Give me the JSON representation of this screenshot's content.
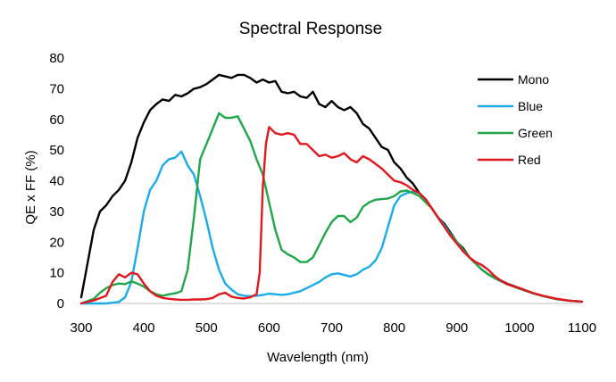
{
  "chart_data": {
    "type": "line",
    "title": "Spectral Response",
    "xlabel": "Wavelength (nm)",
    "ylabel": "QE x FF (%)",
    "xlim": [
      300,
      1100
    ],
    "ylim": [
      0,
      80
    ],
    "x_ticks": [
      "300",
      "400",
      "500",
      "600",
      "700",
      "800",
      "900",
      "1000",
      "1100"
    ],
    "y_ticks": [
      "0",
      "10",
      "20",
      "30",
      "40",
      "50",
      "60",
      "70",
      "80"
    ],
    "grid": false,
    "legend_position": "top-right",
    "series": [
      {
        "name": "Mono",
        "color": "#000000",
        "points": [
          [
            300,
            2
          ],
          [
            310,
            13
          ],
          [
            320,
            24
          ],
          [
            330,
            30
          ],
          [
            340,
            32
          ],
          [
            350,
            35
          ],
          [
            360,
            37
          ],
          [
            370,
            40
          ],
          [
            380,
            46
          ],
          [
            390,
            54
          ],
          [
            400,
            59
          ],
          [
            410,
            63
          ],
          [
            420,
            65
          ],
          [
            430,
            66.5
          ],
          [
            440,
            66
          ],
          [
            450,
            68
          ],
          [
            460,
            67.5
          ],
          [
            470,
            68.5
          ],
          [
            480,
            70
          ],
          [
            490,
            70.5
          ],
          [
            500,
            71.5
          ],
          [
            510,
            73
          ],
          [
            520,
            74.5
          ],
          [
            530,
            74
          ],
          [
            540,
            73.5
          ],
          [
            550,
            74.5
          ],
          [
            560,
            74.5
          ],
          [
            570,
            73.5
          ],
          [
            580,
            72
          ],
          [
            590,
            73
          ],
          [
            600,
            72
          ],
          [
            610,
            72.5
          ],
          [
            620,
            69
          ],
          [
            630,
            68.5
          ],
          [
            640,
            69
          ],
          [
            650,
            67.5
          ],
          [
            660,
            67
          ],
          [
            670,
            69
          ],
          [
            680,
            65
          ],
          [
            690,
            64
          ],
          [
            700,
            66
          ],
          [
            710,
            64
          ],
          [
            720,
            63
          ],
          [
            730,
            64
          ],
          [
            740,
            62
          ],
          [
            750,
            58.5
          ],
          [
            760,
            57
          ],
          [
            770,
            54
          ],
          [
            780,
            51
          ],
          [
            790,
            50
          ],
          [
            800,
            46
          ],
          [
            810,
            44
          ],
          [
            820,
            41
          ],
          [
            830,
            39
          ],
          [
            840,
            36
          ],
          [
            850,
            34
          ],
          [
            860,
            31
          ],
          [
            870,
            28
          ],
          [
            880,
            26
          ],
          [
            890,
            23
          ],
          [
            900,
            20
          ],
          [
            910,
            18
          ],
          [
            920,
            15
          ],
          [
            930,
            13
          ],
          [
            940,
            11
          ],
          [
            950,
            9.5
          ],
          [
            960,
            8.5
          ],
          [
            970,
            7.5
          ],
          [
            980,
            6.5
          ],
          [
            1000,
            5
          ],
          [
            1020,
            3.5
          ],
          [
            1040,
            2.3
          ],
          [
            1060,
            1.4
          ],
          [
            1080,
            0.9
          ],
          [
            1100,
            0.6
          ]
        ]
      },
      {
        "name": "Blue",
        "color": "#1aabe8",
        "points": [
          [
            300,
            0
          ],
          [
            320,
            0
          ],
          [
            340,
            0
          ],
          [
            360,
            0.5
          ],
          [
            370,
            2
          ],
          [
            380,
            7
          ],
          [
            390,
            18
          ],
          [
            400,
            30
          ],
          [
            410,
            37
          ],
          [
            420,
            40
          ],
          [
            430,
            45
          ],
          [
            440,
            47
          ],
          [
            450,
            47.5
          ],
          [
            460,
            49.5
          ],
          [
            470,
            45
          ],
          [
            480,
            42
          ],
          [
            490,
            35
          ],
          [
            500,
            27
          ],
          [
            510,
            18
          ],
          [
            520,
            11
          ],
          [
            530,
            6.5
          ],
          [
            540,
            4.5
          ],
          [
            550,
            3
          ],
          [
            560,
            2.5
          ],
          [
            570,
            2.4
          ],
          [
            580,
            2.5
          ],
          [
            590,
            2.8
          ],
          [
            600,
            3.2
          ],
          [
            610,
            3
          ],
          [
            620,
            2.8
          ],
          [
            630,
            3
          ],
          [
            640,
            3.5
          ],
          [
            650,
            4
          ],
          [
            660,
            5
          ],
          [
            670,
            6
          ],
          [
            680,
            7
          ],
          [
            690,
            8.5
          ],
          [
            700,
            9.5
          ],
          [
            710,
            9.8
          ],
          [
            720,
            9.3
          ],
          [
            730,
            8.8
          ],
          [
            740,
            9.5
          ],
          [
            750,
            11
          ],
          [
            760,
            12
          ],
          [
            770,
            14
          ],
          [
            780,
            18
          ],
          [
            790,
            25
          ],
          [
            800,
            32
          ],
          [
            810,
            35
          ],
          [
            820,
            36
          ],
          [
            830,
            36.5
          ],
          [
            840,
            36
          ],
          [
            850,
            34
          ],
          [
            860,
            31
          ],
          [
            870,
            28
          ],
          [
            880,
            25.5
          ],
          [
            890,
            22.5
          ],
          [
            900,
            20
          ],
          [
            910,
            17.5
          ],
          [
            920,
            15
          ],
          [
            930,
            13
          ],
          [
            940,
            11
          ],
          [
            950,
            9.5
          ],
          [
            960,
            8.3
          ],
          [
            970,
            7.3
          ],
          [
            980,
            6.3
          ],
          [
            1000,
            4.8
          ],
          [
            1020,
            3.4
          ],
          [
            1040,
            2.3
          ],
          [
            1060,
            1.4
          ],
          [
            1080,
            0.9
          ],
          [
            1100,
            0.6
          ]
        ]
      },
      {
        "name": "Green",
        "color": "#22a64a",
        "points": [
          [
            300,
            0
          ],
          [
            320,
            1.5
          ],
          [
            330,
            3.5
          ],
          [
            340,
            5
          ],
          [
            350,
            6
          ],
          [
            360,
            6.5
          ],
          [
            370,
            6.3
          ],
          [
            380,
            7.2
          ],
          [
            390,
            6.5
          ],
          [
            400,
            5.5
          ],
          [
            410,
            4
          ],
          [
            420,
            3
          ],
          [
            430,
            2.5
          ],
          [
            440,
            3
          ],
          [
            450,
            3.3
          ],
          [
            460,
            4
          ],
          [
            470,
            11
          ],
          [
            480,
            28
          ],
          [
            490,
            47
          ],
          [
            500,
            52
          ],
          [
            510,
            57
          ],
          [
            520,
            62
          ],
          [
            530,
            60.5
          ],
          [
            540,
            60.5
          ],
          [
            550,
            61
          ],
          [
            560,
            57
          ],
          [
            570,
            53
          ],
          [
            580,
            47
          ],
          [
            590,
            42
          ],
          [
            600,
            33
          ],
          [
            610,
            24
          ],
          [
            620,
            17.5
          ],
          [
            630,
            16
          ],
          [
            640,
            15
          ],
          [
            650,
            13.5
          ],
          [
            660,
            13.5
          ],
          [
            670,
            15
          ],
          [
            680,
            19
          ],
          [
            690,
            23
          ],
          [
            700,
            26.5
          ],
          [
            710,
            28.5
          ],
          [
            720,
            28.5
          ],
          [
            730,
            26.5
          ],
          [
            740,
            28
          ],
          [
            750,
            31.5
          ],
          [
            760,
            33
          ],
          [
            770,
            33.8
          ],
          [
            780,
            34
          ],
          [
            790,
            34.2
          ],
          [
            800,
            35
          ],
          [
            810,
            36.5
          ],
          [
            820,
            36.8
          ],
          [
            830,
            36
          ],
          [
            840,
            35
          ],
          [
            850,
            33
          ],
          [
            860,
            31
          ],
          [
            870,
            28
          ],
          [
            880,
            25
          ],
          [
            890,
            22.5
          ],
          [
            900,
            20
          ],
          [
            910,
            17.5
          ],
          [
            920,
            15
          ],
          [
            930,
            13
          ],
          [
            940,
            11
          ],
          [
            950,
            9.5
          ],
          [
            960,
            8.3
          ],
          [
            970,
            7.3
          ],
          [
            980,
            6.3
          ],
          [
            1000,
            4.8
          ],
          [
            1020,
            3.4
          ],
          [
            1040,
            2.3
          ],
          [
            1060,
            1.4
          ],
          [
            1080,
            0.9
          ],
          [
            1100,
            0.6
          ]
        ]
      },
      {
        "name": "Red",
        "color": "#e3171e",
        "points": [
          [
            300,
            0
          ],
          [
            320,
            1
          ],
          [
            340,
            2.5
          ],
          [
            350,
            7
          ],
          [
            360,
            9.5
          ],
          [
            370,
            8.5
          ],
          [
            380,
            10
          ],
          [
            390,
            9.5
          ],
          [
            400,
            6.5
          ],
          [
            410,
            4
          ],
          [
            420,
            2.5
          ],
          [
            430,
            1.8
          ],
          [
            440,
            1.5
          ],
          [
            450,
            1.3
          ],
          [
            460,
            1.2
          ],
          [
            470,
            1.2
          ],
          [
            480,
            1.3
          ],
          [
            490,
            1.3
          ],
          [
            500,
            1.4
          ],
          [
            510,
            1.8
          ],
          [
            520,
            3
          ],
          [
            530,
            3.5
          ],
          [
            540,
            2.2
          ],
          [
            550,
            1.8
          ],
          [
            560,
            1.6
          ],
          [
            570,
            2
          ],
          [
            580,
            3
          ],
          [
            585,
            10
          ],
          [
            590,
            38
          ],
          [
            595,
            52
          ],
          [
            600,
            57.5
          ],
          [
            610,
            55.5
          ],
          [
            620,
            55
          ],
          [
            630,
            55.5
          ],
          [
            640,
            55
          ],
          [
            650,
            52
          ],
          [
            660,
            52
          ],
          [
            670,
            50
          ],
          [
            680,
            48
          ],
          [
            690,
            48.5
          ],
          [
            700,
            47.5
          ],
          [
            710,
            48
          ],
          [
            720,
            49
          ],
          [
            730,
            47
          ],
          [
            740,
            46
          ],
          [
            750,
            48
          ],
          [
            760,
            47
          ],
          [
            770,
            45.5
          ],
          [
            780,
            44
          ],
          [
            790,
            42
          ],
          [
            800,
            40
          ],
          [
            810,
            39.5
          ],
          [
            820,
            38.5
          ],
          [
            830,
            37
          ],
          [
            840,
            36
          ],
          [
            850,
            34
          ],
          [
            860,
            31
          ],
          [
            870,
            28
          ],
          [
            880,
            25
          ],
          [
            890,
            22
          ],
          [
            900,
            19.5
          ],
          [
            910,
            17
          ],
          [
            920,
            15
          ],
          [
            930,
            13.5
          ],
          [
            940,
            12.5
          ],
          [
            950,
            11
          ],
          [
            960,
            9
          ],
          [
            970,
            7.5
          ],
          [
            980,
            6.3
          ],
          [
            1000,
            5
          ],
          [
            1020,
            3.5
          ],
          [
            1040,
            2.4
          ],
          [
            1060,
            1.5
          ],
          [
            1080,
            0.9
          ],
          [
            1100,
            0.6
          ]
        ]
      }
    ]
  }
}
